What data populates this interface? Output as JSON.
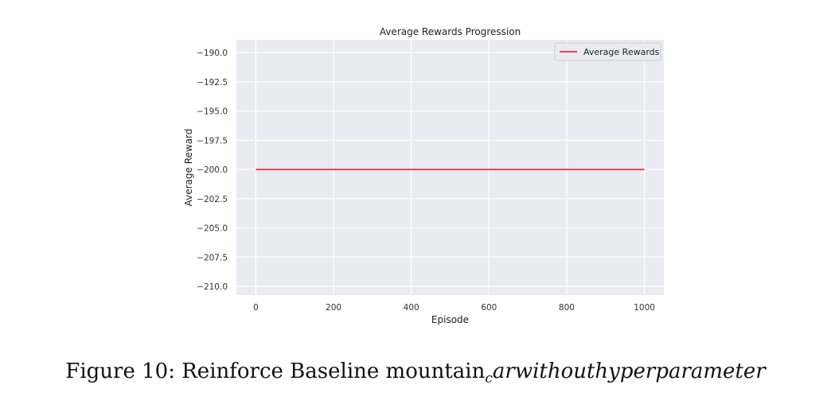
{
  "chart_data": {
    "type": "line",
    "title": "Average Rewards Progression",
    "xlabel": "Episode",
    "ylabel": "Average Reward",
    "xlim": [
      -50,
      1050
    ],
    "ylim": [
      -210.75,
      -188.9
    ],
    "xticks": [
      0,
      200,
      400,
      600,
      800,
      1000
    ],
    "xtick_labels": [
      "0",
      "200",
      "400",
      "600",
      "800",
      "1000"
    ],
    "yticks": [
      -190.0,
      -192.5,
      -195.0,
      -197.5,
      -200.0,
      -202.5,
      -205.0,
      -207.5,
      -210.0
    ],
    "ytick_labels": [
      "−190.0",
      "−192.5",
      "−195.0",
      "−197.5",
      "−200.0",
      "−202.5",
      "−205.0",
      "−207.5",
      "−210.0"
    ],
    "grid": true,
    "legend_position": "top-right",
    "series": [
      {
        "name": "Average Rewards",
        "color": "#e8141a",
        "x": [
          0,
          1000
        ],
        "y": [
          -200.0,
          -200.0
        ]
      }
    ],
    "colors": {
      "plot_background": "#eaeaf2",
      "grid": "#ffffff"
    }
  },
  "caption": {
    "label": "Figure 10:",
    "main": "Reinforce Baseline mountain",
    "subscript": "c",
    "italic_rest": "arwithouthyperparameter"
  }
}
